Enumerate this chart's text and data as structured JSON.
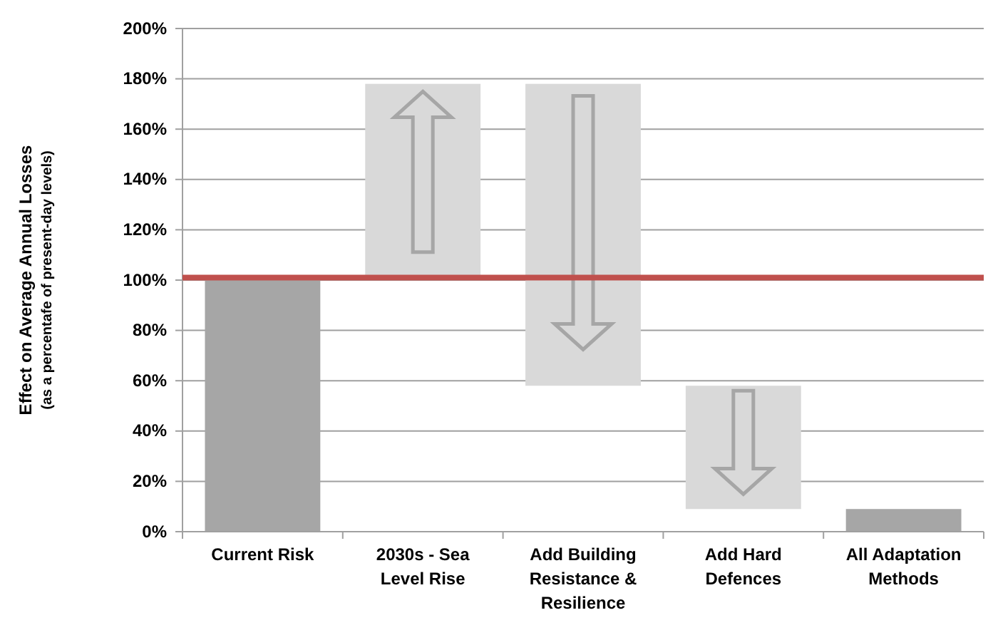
{
  "chart_data": {
    "type": "bar",
    "ylabel": "Effect on Average Annual Losses\n(as a percentafe of present-day levels)",
    "categories": [
      "Current Risk",
      "2030s - Sea Level Rise",
      "Add Building Resistance & Resilience",
      "Add Hard Defences",
      "All Adaptation Methods"
    ],
    "values": [
      100,
      76,
      -120,
      -49,
      9
    ],
    "base": [
      0,
      102,
      178,
      58,
      0
    ],
    "colors": [
      "#a6a6a6",
      "#d9d9d9",
      "#d9d9d9",
      "#d9d9d9",
      "#a6a6a6"
    ],
    "ylim": [
      0,
      200
    ],
    "yticks": [
      {
        "value": 0,
        "label": "0%"
      },
      {
        "value": 20,
        "label": "20%"
      },
      {
        "value": 40,
        "label": "40%"
      },
      {
        "value": 60,
        "label": "60%"
      },
      {
        "value": 80,
        "label": "80%"
      },
      {
        "value": 100,
        "label": "100%"
      },
      {
        "value": 120,
        "label": "120%"
      },
      {
        "value": 140,
        "label": "140%"
      },
      {
        "value": 160,
        "label": "160%"
      },
      {
        "value": 180,
        "label": "180%"
      },
      {
        "value": 200,
        "label": "200%"
      }
    ],
    "grid": "y",
    "ref_lines": [
      {
        "axis": "y",
        "value": 101,
        "color": "#c0504d"
      }
    ]
  }
}
